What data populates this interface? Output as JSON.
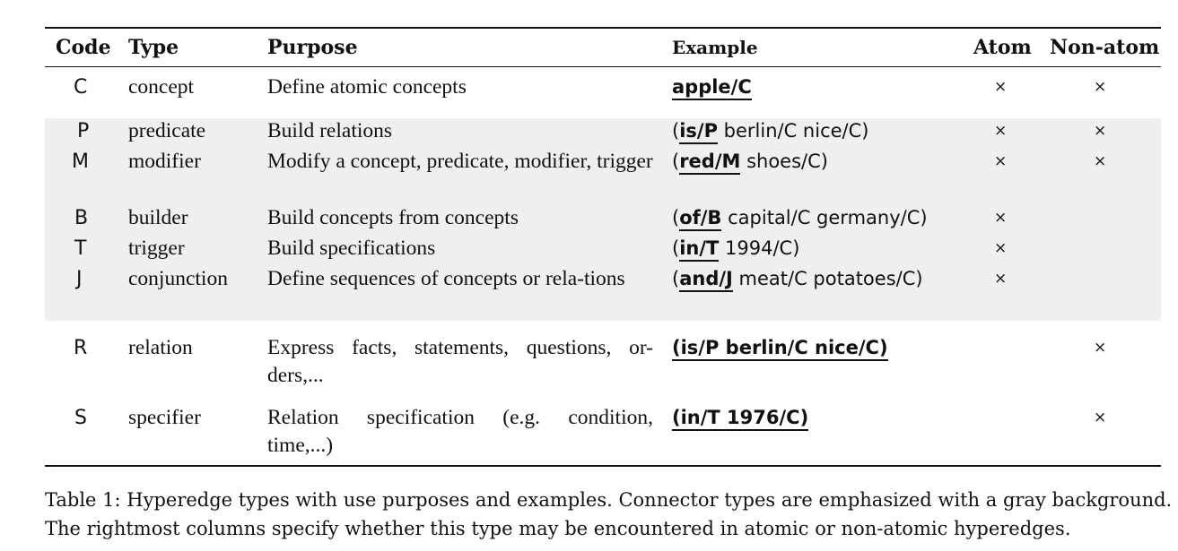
{
  "table": {
    "headers": {
      "code": "Code",
      "type": "Type",
      "purpose": "Purpose",
      "example": "Example",
      "atom": "Atom",
      "non_atom": "Non-atom"
    },
    "rows": [
      {
        "code": "C",
        "type": "concept",
        "purpose": "Define atomic concepts",
        "example_connector": "apple/C",
        "example_rest": "",
        "atom": "×",
        "non_atom": "×",
        "connector_type": false
      },
      {
        "code": "P",
        "type": "predicate",
        "purpose": "Build relations",
        "example_connector": "is/P",
        "example_rest": " berlin/C nice/C)",
        "atom": "×",
        "non_atom": "×",
        "connector_type": true
      },
      {
        "code": "M",
        "type": "modifier",
        "purpose": "Modify a concept, predicate, modifier, trigger",
        "example_connector": "red/M",
        "example_rest": " shoes/C)",
        "atom": "×",
        "non_atom": "×",
        "connector_type": true
      },
      {
        "code": "B",
        "type": "builder",
        "purpose": "Build concepts from concepts",
        "example_connector": "of/B",
        "example_rest": " capital/C germany/C)",
        "atom": "×",
        "non_atom": "",
        "connector_type": true
      },
      {
        "code": "T",
        "type": "trigger",
        "purpose": "Build specifications",
        "example_connector": "in/T",
        "example_rest": " 1994/C)",
        "atom": "×",
        "non_atom": "",
        "connector_type": true
      },
      {
        "code": "J",
        "type": "conjunction",
        "purpose": "Define sequences of concepts or rela-tions",
        "example_connector": "and/J",
        "example_rest": " meat/C potatoes/C)",
        "atom": "×",
        "non_atom": "",
        "connector_type": true
      },
      {
        "code": "R",
        "type": "relation",
        "purpose": "Express facts, statements, questions, or-ders,...",
        "example_whole": "(is/P berlin/C nice/C)",
        "atom": "",
        "non_atom": "×",
        "connector_type": false
      },
      {
        "code": "S",
        "type": "specifier",
        "purpose": "Relation specification (e.g. condition, time,...)",
        "example_whole": "(in/T 1976/C)",
        "atom": "",
        "non_atom": "×",
        "connector_type": false
      }
    ]
  },
  "caption": {
    "line1": "Table 1: Hyperedge types with use purposes and examples. Connector types are emphasized with a gray background.",
    "line2": "The rightmost columns specify whether this type may be encountered in atomic or non-atomic hyperedges."
  },
  "colors": {
    "connector_background": "#efefef",
    "rule": "#111111"
  }
}
